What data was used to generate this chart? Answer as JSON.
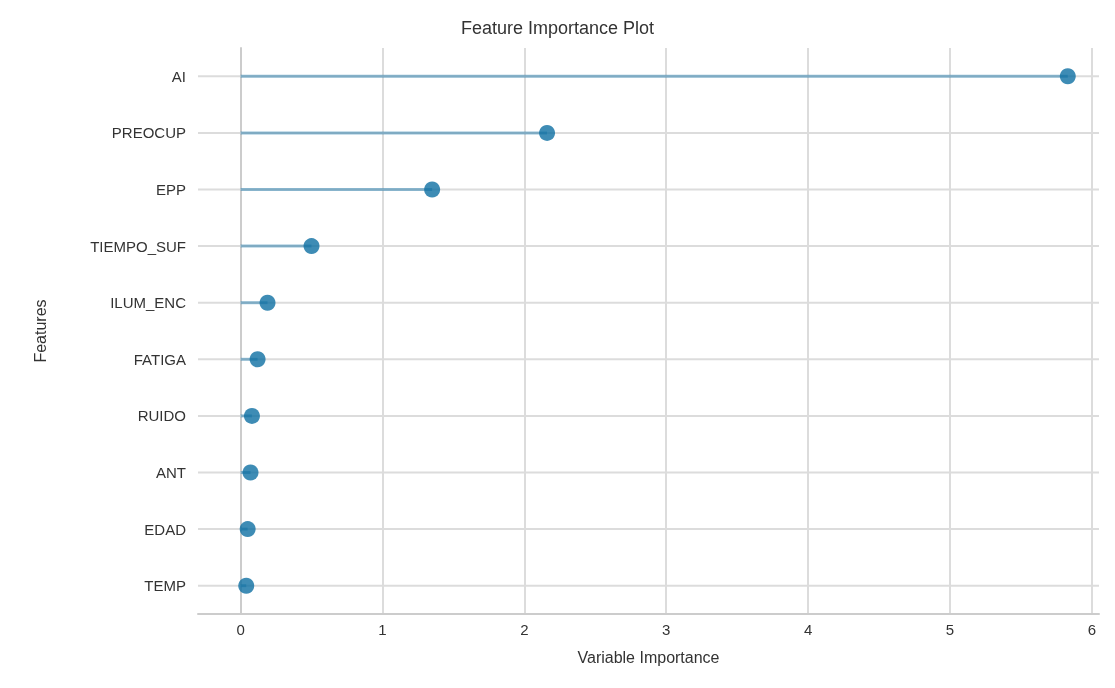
{
  "chart_data": {
    "type": "lollipop",
    "orientation": "horizontal",
    "title": "Feature Importance Plot",
    "xlabel": "Variable Importance",
    "ylabel": "Features",
    "categories": [
      "AI",
      "PREOCUP",
      "EPP",
      "TIEMPO_SUF",
      "ILUM_ENC",
      "FATIGA",
      "RUIDO",
      "ANT",
      "EDAD",
      "TEMP"
    ],
    "values": [
      5.83,
      2.16,
      1.35,
      0.5,
      0.19,
      0.12,
      0.08,
      0.07,
      0.05,
      0.04
    ],
    "color": "#0e6fa3",
    "xlim": [
      -0.3,
      6.05
    ],
    "xticks": [
      0,
      1,
      2,
      3,
      4,
      5,
      6
    ],
    "grid": true,
    "marker": "circle"
  }
}
